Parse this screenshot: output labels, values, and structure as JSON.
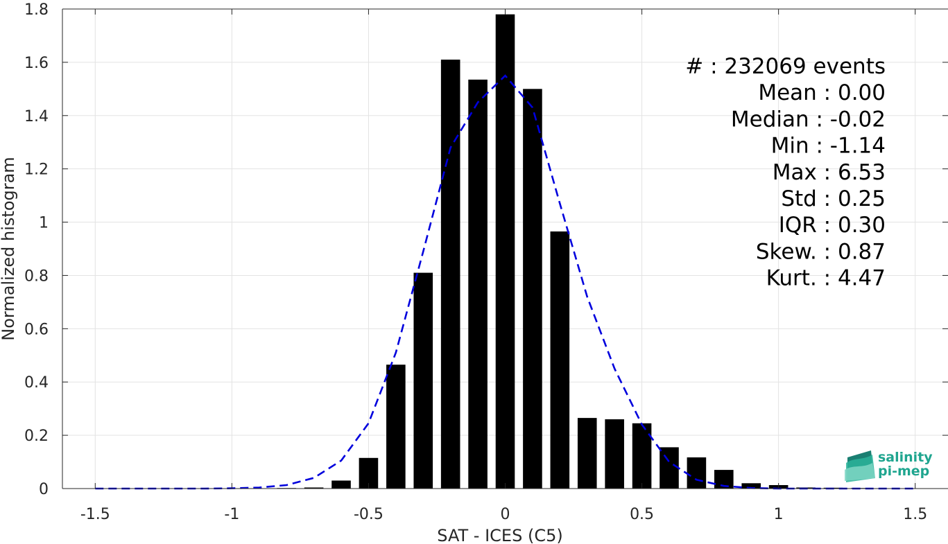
{
  "chart_data": {
    "type": "bar",
    "xlabel": "SAT - ICES (C5)",
    "ylabel": "Normalized histogram",
    "xlim": [
      -1.62,
      1.62
    ],
    "ylim": [
      0,
      1.8
    ],
    "grid": true,
    "xticks": [
      -1.5,
      -1,
      -0.5,
      0,
      0.5,
      1,
      1.5
    ],
    "xtick_labels": [
      "-1.5",
      "-1",
      "-0.5",
      "0",
      "0.5",
      "1",
      "1.5"
    ],
    "yticks": [
      0,
      0.2,
      0.4,
      0.6,
      0.8,
      1,
      1.2,
      1.4,
      1.6,
      1.8
    ],
    "ytick_labels": [
      "0",
      "0.2",
      "0.4",
      "0.6",
      "0.8",
      "1",
      "1.2",
      "1.4",
      "1.6",
      "1.8"
    ],
    "bar_width": 0.07,
    "bar_color": "#000000",
    "bars": [
      {
        "x": -0.8,
        "y": 0.002
      },
      {
        "x": -0.7,
        "y": 0.004
      },
      {
        "x": -0.6,
        "y": 0.03
      },
      {
        "x": -0.5,
        "y": 0.115
      },
      {
        "x": -0.4,
        "y": 0.465
      },
      {
        "x": -0.3,
        "y": 0.81
      },
      {
        "x": -0.2,
        "y": 1.61
      },
      {
        "x": -0.1,
        "y": 1.535
      },
      {
        "x": 0.0,
        "y": 1.78
      },
      {
        "x": 0.1,
        "y": 1.5
      },
      {
        "x": 0.2,
        "y": 0.965
      },
      {
        "x": 0.3,
        "y": 0.265
      },
      {
        "x": 0.4,
        "y": 0.26
      },
      {
        "x": 0.5,
        "y": 0.245
      },
      {
        "x": 0.6,
        "y": 0.155
      },
      {
        "x": 0.7,
        "y": 0.117
      },
      {
        "x": 0.8,
        "y": 0.07
      },
      {
        "x": 0.9,
        "y": 0.02
      },
      {
        "x": 1.0,
        "y": 0.013
      },
      {
        "x": 1.1,
        "y": 0.004
      },
      {
        "x": 1.2,
        "y": 0.003
      },
      {
        "x": 1.3,
        "y": 0.002
      },
      {
        "x": 1.4,
        "y": 0.001
      },
      {
        "x": 1.5,
        "y": 0.001
      }
    ],
    "fit_curve": {
      "color": "#0000dd",
      "style": "dashed",
      "x": [
        -1.5,
        -1.4,
        -1.3,
        -1.2,
        -1.1,
        -1.0,
        -0.9,
        -0.8,
        -0.7,
        -0.6,
        -0.5,
        -0.4,
        -0.3,
        -0.2,
        -0.1,
        0.0,
        0.1,
        0.2,
        0.3,
        0.4,
        0.5,
        0.6,
        0.7,
        0.8,
        0.9,
        1.0,
        1.1,
        1.2,
        1.3,
        1.4,
        1.5
      ],
      "y": [
        0,
        0,
        0,
        0,
        0,
        0.001,
        0.004,
        0.013,
        0.04,
        0.105,
        0.245,
        0.51,
        0.89,
        1.28,
        1.45,
        1.55,
        1.43,
        1.07,
        0.72,
        0.45,
        0.24,
        0.1,
        0.033,
        0.01,
        0.002,
        0,
        0,
        0,
        0,
        0,
        0
      ]
    },
    "stats": [
      {
        "label": "#  ",
        "value": "232069 events"
      },
      {
        "label": "Mean",
        "value": "0.00"
      },
      {
        "label": "Median",
        "value": "-0.02"
      },
      {
        "label": "Min",
        "value": "-1.14"
      },
      {
        "label": "Max",
        "value": "6.53"
      },
      {
        "label": "Std",
        "value": "0.25"
      },
      {
        "label": "IQR",
        "value": "0.30"
      },
      {
        "label": "Skew.",
        "value": "0.87"
      },
      {
        "label": "Kurt.",
        "value": "4.47"
      }
    ],
    "stats_text": [
      "#  : 232069 events",
      "Mean : 0.00",
      "Median : -0.02",
      "Min : -1.14",
      "Max : 6.53",
      "Std : 0.25",
      "IQR : 0.30",
      "Skew. : 0.87",
      "Kurt. : 4.47"
    ]
  },
  "logo": {
    "line1": "salinity",
    "line2": "pi-mep",
    "color": "#1fa58f"
  }
}
